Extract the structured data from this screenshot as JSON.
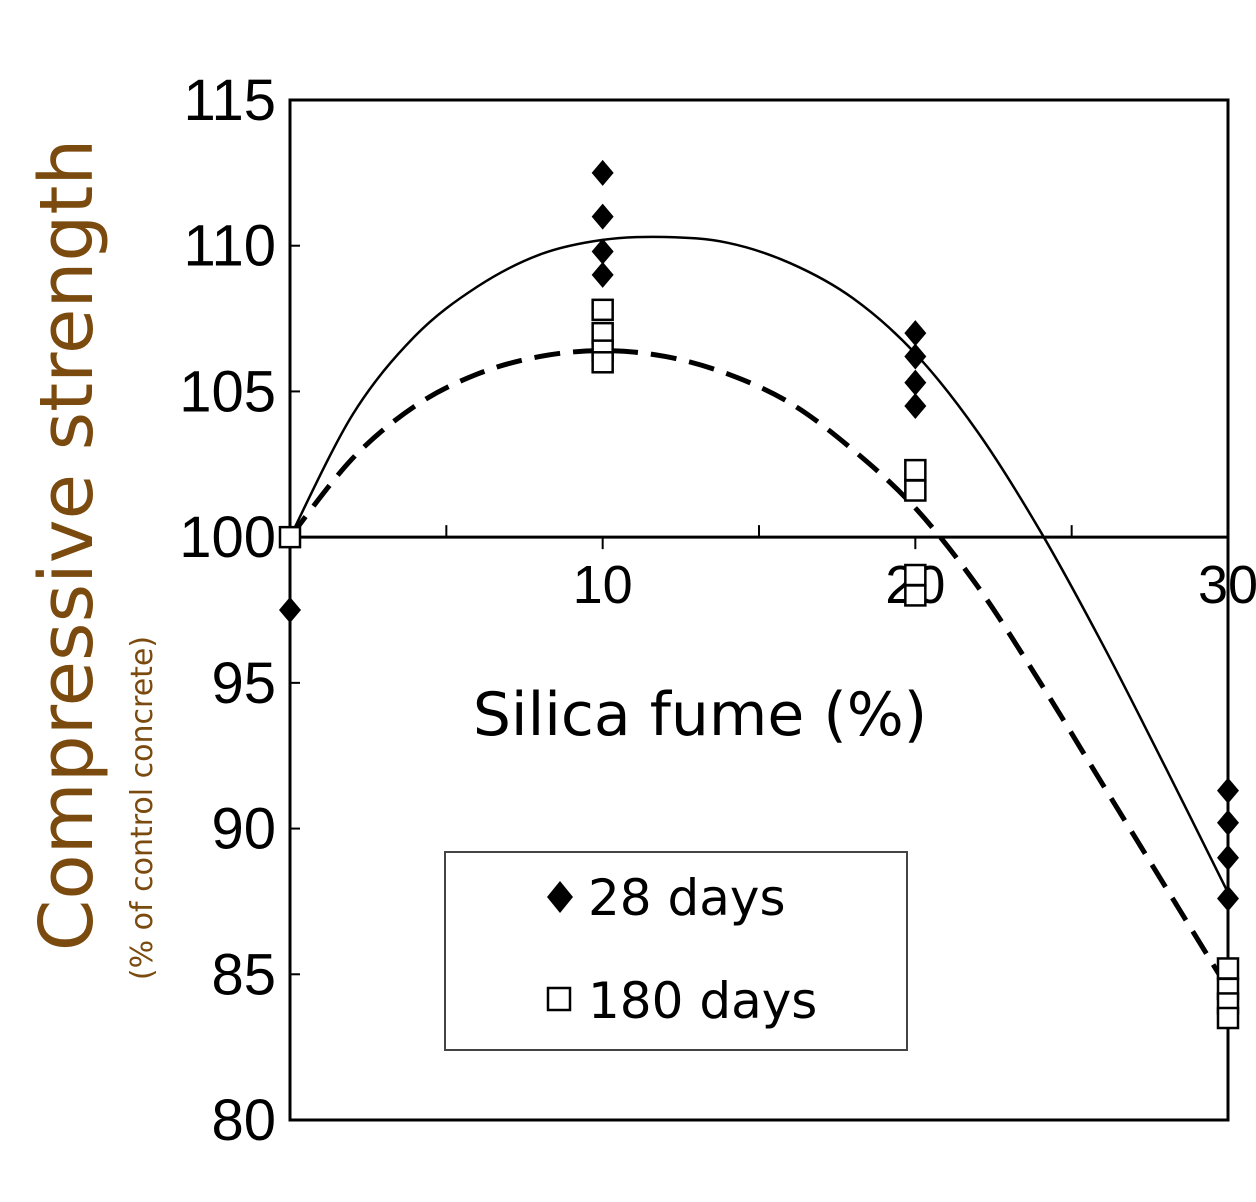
{
  "chart_data": {
    "type": "scatter",
    "ylabel": "Compressive strength",
    "ylabel_sub": "(% of control concrete)",
    "xlabel": "Silica fume (%)",
    "xlim": [
      0,
      30
    ],
    "ylim": [
      80,
      115
    ],
    "x_crossing_y": 100,
    "yticks": [
      80,
      85,
      90,
      95,
      100,
      105,
      110,
      115
    ],
    "xticks": [
      10,
      20,
      30
    ],
    "xtick_labels": [
      "10",
      "20",
      "30"
    ],
    "x_minor_ticks": [
      5,
      15,
      25
    ],
    "legend_position": "lower-center",
    "series": [
      {
        "name": "28 days",
        "marker": "filled-diamond",
        "color": "#000000",
        "points": [
          [
            0,
            100.0
          ],
          [
            0,
            97.5
          ],
          [
            10,
            112.5
          ],
          [
            10,
            111.0
          ],
          [
            10,
            109.8
          ],
          [
            10,
            109.0
          ],
          [
            20,
            107.0
          ],
          [
            20,
            106.2
          ],
          [
            20,
            105.3
          ],
          [
            20,
            104.5
          ],
          [
            30,
            91.3
          ],
          [
            30,
            90.2
          ],
          [
            30,
            89.0
          ],
          [
            30,
            87.6
          ]
        ]
      },
      {
        "name": "180 days",
        "marker": "open-square",
        "color": "#000000",
        "points": [
          [
            0,
            100.0
          ],
          [
            10,
            107.8
          ],
          [
            10,
            107.0
          ],
          [
            10,
            106.4
          ],
          [
            10,
            106.0
          ],
          [
            20,
            102.3
          ],
          [
            20,
            101.6
          ],
          [
            20,
            98.7
          ],
          [
            20,
            98.0
          ],
          [
            30,
            85.2
          ],
          [
            30,
            84.5
          ],
          [
            30,
            84.0
          ],
          [
            30,
            83.5
          ]
        ]
      }
    ],
    "trend_lines": [
      {
        "series": "28 days",
        "style": "solid",
        "points": [
          [
            0,
            100
          ],
          [
            2,
            104.2
          ],
          [
            4,
            106.9
          ],
          [
            6,
            108.6
          ],
          [
            8,
            109.7
          ],
          [
            10,
            110.2
          ],
          [
            12,
            110.3
          ],
          [
            14,
            110.1
          ],
          [
            16,
            109.4
          ],
          [
            18,
            108.2
          ],
          [
            20,
            106.3
          ],
          [
            22,
            103.6
          ],
          [
            24,
            100.2
          ],
          [
            26,
            96.3
          ],
          [
            28,
            92.1
          ],
          [
            30,
            87.8
          ]
        ]
      },
      {
        "series": "180 days",
        "style": "dashed",
        "points": [
          [
            0,
            100
          ],
          [
            2,
            102.7
          ],
          [
            4,
            104.5
          ],
          [
            6,
            105.6
          ],
          [
            8,
            106.2
          ],
          [
            10,
            106.4
          ],
          [
            12,
            106.2
          ],
          [
            14,
            105.6
          ],
          [
            16,
            104.6
          ],
          [
            18,
            103.0
          ],
          [
            20,
            101.0
          ],
          [
            22,
            98.3
          ],
          [
            24,
            95.0
          ],
          [
            26,
            91.5
          ],
          [
            28,
            88.0
          ],
          [
            30,
            84.5
          ]
        ]
      }
    ]
  }
}
